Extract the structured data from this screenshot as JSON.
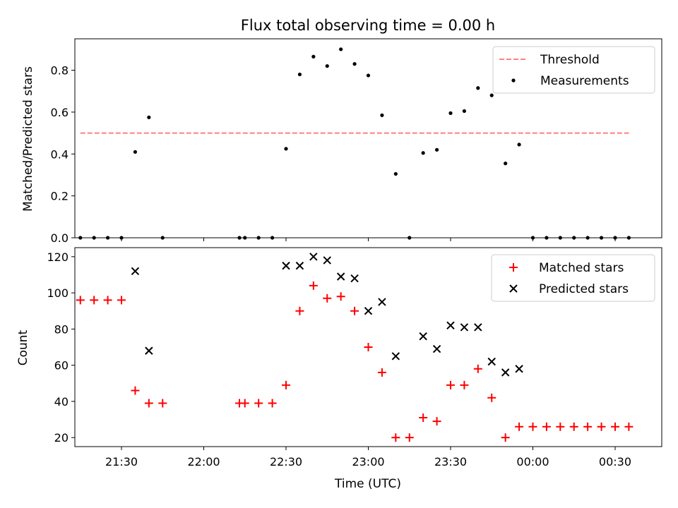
{
  "chart_data": [
    {
      "type": "scatter",
      "title": "Flux total observing time = 0.00 h",
      "xlabel": "",
      "ylabel": "Matched/Predicted stars",
      "xlim": [
        "21:13",
        "00:47"
      ],
      "ylim": [
        0,
        0.95
      ],
      "yticks": [
        0.0,
        0.2,
        0.4,
        0.6,
        0.8
      ],
      "ytick_labels": [
        "0.0",
        "0.2",
        "0.4",
        "0.6",
        "0.8"
      ],
      "grid": false,
      "legend_position": "top-right",
      "threshold": {
        "name": "Threshold",
        "value": 0.5,
        "color": "#ff8080",
        "x": [
          "21:15",
          "00:35"
        ]
      },
      "series": [
        {
          "name": "Measurements",
          "marker": "dot",
          "color": "#000000",
          "x": [
            "21:15",
            "21:20",
            "21:25",
            "21:30",
            "21:35",
            "21:40",
            "21:45",
            "22:13",
            "22:15",
            "22:20",
            "22:25",
            "22:30",
            "22:35",
            "22:40",
            "22:45",
            "22:50",
            "22:55",
            "23:00",
            "23:05",
            "23:10",
            "23:15",
            "23:20",
            "23:25",
            "23:30",
            "23:35",
            "23:40",
            "23:45",
            "23:50",
            "23:55",
            "00:00",
            "00:05",
            "00:10",
            "00:15",
            "00:20",
            "00:25",
            "00:30",
            "00:35"
          ],
          "y": [
            0,
            0,
            0,
            0,
            0.41,
            0.575,
            0,
            0,
            0,
            0,
            0,
            0.425,
            0.78,
            0.865,
            0.82,
            0.9,
            0.83,
            0.775,
            0.585,
            0.305,
            0,
            0.405,
            0.42,
            0.595,
            0.605,
            0.715,
            0.68,
            0.355,
            0.445,
            0,
            0,
            0,
            0,
            0,
            0,
            0,
            0
          ]
        }
      ]
    },
    {
      "type": "scatter",
      "title": "",
      "xlabel": "Time (UTC)",
      "ylabel": "Count",
      "xlim": [
        "21:13",
        "00:47"
      ],
      "ylim": [
        15,
        125
      ],
      "yticks": [
        20,
        40,
        60,
        80,
        100,
        120
      ],
      "xticks": [
        "21:30",
        "22:00",
        "22:30",
        "23:00",
        "23:30",
        "00:00",
        "00:30"
      ],
      "grid": false,
      "legend_position": "top-right",
      "series": [
        {
          "name": "Matched stars",
          "marker": "plus",
          "color": "#ff0000",
          "x": [
            "21:15",
            "21:20",
            "21:25",
            "21:30",
            "21:35",
            "21:40",
            "21:45",
            "22:13",
            "22:15",
            "22:20",
            "22:25",
            "22:30",
            "22:35",
            "22:40",
            "22:45",
            "22:50",
            "22:55",
            "23:00",
            "23:05",
            "23:10",
            "23:15",
            "23:20",
            "23:25",
            "23:30",
            "23:35",
            "23:40",
            "23:45",
            "23:50",
            "23:55",
            "00:00",
            "00:05",
            "00:10",
            "00:15",
            "00:20",
            "00:25",
            "00:30",
            "00:35"
          ],
          "y": [
            96,
            96,
            96,
            96,
            46,
            39,
            39,
            39,
            39,
            39,
            39,
            49,
            90,
            104,
            97,
            98,
            90,
            70,
            56,
            20,
            20,
            31,
            29,
            49,
            49,
            58,
            42,
            20,
            26,
            26,
            26,
            26,
            26,
            26,
            26,
            26,
            26
          ]
        },
        {
          "name": "Predicted stars",
          "marker": "x",
          "color": "#000000",
          "x": [
            "21:35",
            "21:40",
            "22:30",
            "22:35",
            "22:40",
            "22:45",
            "22:50",
            "22:55",
            "23:00",
            "23:05",
            "23:10",
            "23:20",
            "23:25",
            "23:30",
            "23:35",
            "23:40",
            "23:45",
            "23:50",
            "23:55"
          ],
          "y": [
            112,
            68,
            115,
            115,
            120,
            118,
            109,
            108,
            90,
            95,
            65,
            76,
            69,
            82,
            81,
            81,
            62,
            56,
            58
          ]
        }
      ]
    }
  ]
}
